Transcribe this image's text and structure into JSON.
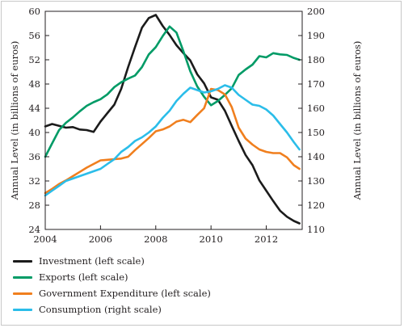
{
  "chart_data": {
    "type": "line",
    "xlabel": "",
    "ylabel_left": "Annual Level (in billions of euros)",
    "ylabel_right": "Annual Level (in billions of euros)",
    "xlim": [
      2004,
      2013.3
    ],
    "ylim_left": [
      24,
      60
    ],
    "ylim_right": [
      110,
      200
    ],
    "x_ticks": [
      "2004",
      "2006",
      "2008",
      "2010",
      "2012"
    ],
    "y_ticks_left": [
      "24",
      "28",
      "32",
      "36",
      "40",
      "44",
      "48",
      "52",
      "56",
      "60"
    ],
    "y_ticks_right": [
      "110",
      "120",
      "130",
      "140",
      "150",
      "160",
      "170",
      "180",
      "190",
      "200"
    ],
    "grid": false,
    "legend_position": "below",
    "series": [
      {
        "name": "Investment (left scale)",
        "axis": "left",
        "color": "#1b1b1b",
        "x": [
          2004.0,
          2004.25,
          2004.5,
          2004.75,
          2005.0,
          2005.25,
          2005.5,
          2005.75,
          2006.0,
          2006.25,
          2006.5,
          2006.75,
          2007.0,
          2007.25,
          2007.5,
          2007.75,
          2008.0,
          2008.25,
          2008.5,
          2008.75,
          2009.0,
          2009.25,
          2009.5,
          2009.75,
          2010.0,
          2010.25,
          2010.5,
          2010.75,
          2011.0,
          2011.25,
          2011.5,
          2011.75,
          2012.0,
          2012.25,
          2012.5,
          2012.75,
          2013.0,
          2013.2
        ],
        "values": [
          41.0,
          41.4,
          41.1,
          40.8,
          40.9,
          40.5,
          40.4,
          40.1,
          41.8,
          43.2,
          44.6,
          47.2,
          50.8,
          54.1,
          57.3,
          58.9,
          59.4,
          57.6,
          56.1,
          54.4,
          53.1,
          51.9,
          49.6,
          48.1,
          45.8,
          45.4,
          43.6,
          41.1,
          38.6,
          36.3,
          34.6,
          32.1,
          30.4,
          28.7,
          27.1,
          26.1,
          25.4,
          25.0
        ]
      },
      {
        "name": "Exports (left scale)",
        "axis": "left",
        "color": "#009b66",
        "x": [
          2004.0,
          2004.25,
          2004.5,
          2004.75,
          2005.0,
          2005.25,
          2005.5,
          2005.75,
          2006.0,
          2006.25,
          2006.5,
          2006.75,
          2007.0,
          2007.25,
          2007.5,
          2007.75,
          2008.0,
          2008.25,
          2008.5,
          2008.75,
          2009.0,
          2009.25,
          2009.5,
          2009.75,
          2010.0,
          2010.25,
          2010.5,
          2010.75,
          2011.0,
          2011.25,
          2011.5,
          2011.75,
          2012.0,
          2012.25,
          2012.5,
          2012.75,
          2013.0,
          2013.2
        ],
        "values": [
          36.0,
          38.2,
          40.4,
          41.6,
          42.5,
          43.5,
          44.4,
          45.0,
          45.5,
          46.3,
          47.5,
          48.3,
          48.9,
          49.4,
          50.8,
          52.9,
          54.1,
          55.9,
          57.5,
          56.5,
          53.4,
          50.1,
          47.6,
          45.9,
          44.5,
          45.2,
          46.2,
          47.3,
          49.5,
          50.4,
          51.2,
          52.6,
          52.4,
          53.1,
          52.9,
          52.8,
          52.3,
          52.0
        ]
      },
      {
        "name": "Government Expenditure (left scale)",
        "axis": "left",
        "color": "#f07f1e",
        "x": [
          2004.0,
          2004.25,
          2004.5,
          2004.75,
          2005.0,
          2005.25,
          2005.5,
          2005.75,
          2006.0,
          2006.25,
          2006.5,
          2006.75,
          2007.0,
          2007.25,
          2007.5,
          2007.75,
          2008.0,
          2008.25,
          2008.5,
          2008.75,
          2009.0,
          2009.25,
          2009.5,
          2009.75,
          2010.0,
          2010.25,
          2010.5,
          2010.75,
          2011.0,
          2011.25,
          2011.5,
          2011.75,
          2012.0,
          2012.25,
          2012.5,
          2012.75,
          2013.0,
          2013.2
        ],
        "values": [
          30.0,
          30.7,
          31.5,
          32.1,
          32.8,
          33.5,
          34.2,
          34.8,
          35.4,
          35.5,
          35.6,
          35.7,
          36.0,
          37.1,
          38.1,
          39.1,
          40.2,
          40.5,
          41.0,
          41.8,
          42.1,
          41.7,
          42.9,
          44.0,
          47.2,
          47.0,
          46.3,
          44.2,
          40.8,
          39.0,
          38.0,
          37.2,
          36.8,
          36.6,
          36.6,
          35.9,
          34.6,
          34.0
        ]
      },
      {
        "name": "Consumption (right scale)",
        "axis": "right",
        "color": "#2bbde9",
        "x": [
          2004.0,
          2004.25,
          2004.5,
          2004.75,
          2005.0,
          2005.25,
          2005.5,
          2005.75,
          2006.0,
          2006.25,
          2006.5,
          2006.75,
          2007.0,
          2007.25,
          2007.5,
          2007.75,
          2008.0,
          2008.25,
          2008.5,
          2008.75,
          2009.0,
          2009.25,
          2009.5,
          2009.75,
          2010.0,
          2010.25,
          2010.5,
          2010.75,
          2011.0,
          2011.25,
          2011.5,
          2011.75,
          2012.0,
          2012.25,
          2012.5,
          2012.75,
          2013.0,
          2013.2
        ],
        "values": [
          124.0,
          126.0,
          128.0,
          130.0,
          131.0,
          132.0,
          133.0,
          134.0,
          135.0,
          137.0,
          139.0,
          142.0,
          144.0,
          146.5,
          148.0,
          150.0,
          152.5,
          156.0,
          159.0,
          163.0,
          166.0,
          168.5,
          167.5,
          166.5,
          167.0,
          168.0,
          169.5,
          168.5,
          165.5,
          163.5,
          161.5,
          161.0,
          159.5,
          157.0,
          153.5,
          150.0,
          146.0,
          143.0
        ]
      }
    ]
  }
}
